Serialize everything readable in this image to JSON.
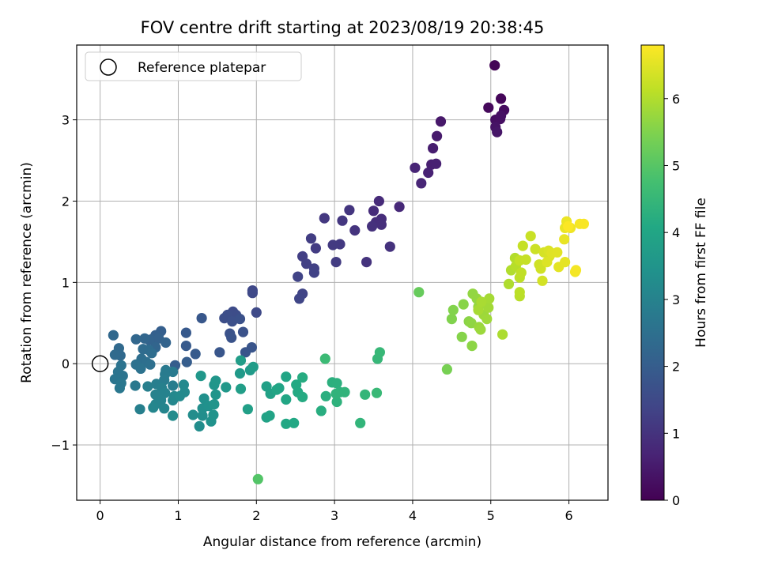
{
  "chart_data": {
    "type": "scatter",
    "title": "FOV centre drift starting at 2023/08/19 20:38:45",
    "xlabel": "Angular distance from reference (arcmin)",
    "ylabel": "Rotation from reference (arcmin)",
    "xlim": [
      -0.3,
      6.5
    ],
    "ylim": [
      -1.68,
      3.92
    ],
    "xticks": [
      0,
      1,
      2,
      3,
      4,
      5,
      6
    ],
    "xtick_labels": [
      "0",
      "1",
      "2",
      "3",
      "4",
      "5",
      "6"
    ],
    "yticks": [
      -1,
      0,
      1,
      2,
      3
    ],
    "ytick_labels": [
      "−1",
      "0",
      "1",
      "2",
      "3"
    ],
    "grid": true,
    "legend": {
      "position": "top-left",
      "label": "Reference platepar"
    },
    "reference_point": {
      "x": 0,
      "y": 0
    },
    "colorbar": {
      "label": "Hours from first FF file",
      "colormap": "viridis",
      "range": [
        0,
        6.8
      ],
      "ticks": [
        0,
        1,
        2,
        3,
        4,
        5,
        6
      ],
      "tick_labels": [
        "0",
        "1",
        "2",
        "3",
        "4",
        "5",
        "6"
      ]
    },
    "points": [
      [
        5.05,
        3.67,
        0.05
      ],
      [
        5.13,
        3.26,
        0.1
      ],
      [
        4.97,
        3.15,
        0.15
      ],
      [
        5.17,
        3.12,
        0.2
      ],
      [
        5.06,
        3.0,
        0.25
      ],
      [
        5.12,
        3.01,
        0.28
      ],
      [
        5.13,
        3.05,
        0.3
      ],
      [
        5.06,
        2.91,
        0.35
      ],
      [
        5.08,
        2.85,
        0.4
      ],
      [
        4.36,
        2.98,
        0.45
      ],
      [
        4.31,
        2.8,
        0.5
      ],
      [
        4.26,
        2.65,
        0.55
      ],
      [
        4.24,
        2.45,
        0.6
      ],
      [
        4.3,
        2.46,
        0.62
      ],
      [
        4.2,
        2.35,
        0.65
      ],
      [
        4.03,
        2.41,
        0.7
      ],
      [
        4.11,
        2.22,
        0.72
      ],
      [
        3.83,
        1.93,
        0.78
      ],
      [
        3.57,
        2.0,
        0.82
      ],
      [
        3.5,
        1.88,
        0.85
      ],
      [
        3.6,
        1.78,
        0.88
      ],
      [
        3.53,
        1.74,
        0.9
      ],
      [
        3.6,
        1.71,
        0.92
      ],
      [
        3.48,
        1.69,
        0.95
      ],
      [
        3.71,
        1.44,
        0.98
      ],
      [
        3.41,
        1.25,
        1.0
      ],
      [
        3.26,
        1.64,
        1.02
      ],
      [
        3.19,
        1.89,
        1.05
      ],
      [
        3.1,
        1.76,
        1.08
      ],
      [
        2.87,
        1.79,
        1.1
      ],
      [
        3.07,
        1.47,
        1.12
      ],
      [
        2.98,
        1.46,
        1.15
      ],
      [
        3.02,
        1.25,
        1.18
      ],
      [
        2.76,
        1.42,
        1.2
      ],
      [
        2.7,
        1.54,
        1.22
      ],
      [
        2.59,
        1.32,
        1.25
      ],
      [
        2.64,
        1.23,
        1.28
      ],
      [
        2.74,
        1.17,
        1.3
      ],
      [
        2.74,
        1.12,
        1.32
      ],
      [
        2.53,
        1.07,
        1.35
      ],
      [
        2.59,
        0.86,
        1.38
      ],
      [
        2.55,
        0.8,
        1.4
      ],
      [
        1.95,
        0.9,
        1.45
      ],
      [
        1.95,
        0.87,
        1.48
      ],
      [
        2.0,
        0.63,
        1.5
      ],
      [
        1.7,
        0.64,
        1.55
      ],
      [
        1.74,
        0.6,
        1.58
      ],
      [
        1.63,
        0.6,
        1.6
      ],
      [
        1.59,
        0.56,
        1.62
      ],
      [
        1.69,
        0.52,
        1.65
      ],
      [
        1.79,
        0.55,
        1.68
      ],
      [
        1.83,
        0.39,
        1.7
      ],
      [
        1.66,
        0.37,
        1.72
      ],
      [
        1.68,
        0.32,
        1.75
      ],
      [
        1.94,
        0.2,
        1.78
      ],
      [
        1.86,
        0.14,
        1.8
      ],
      [
        1.53,
        0.14,
        1.82
      ],
      [
        1.3,
        0.56,
        1.85
      ],
      [
        1.1,
        0.38,
        1.9
      ],
      [
        1.1,
        0.22,
        1.92
      ],
      [
        1.22,
        0.12,
        1.95
      ],
      [
        1.11,
        0.02,
        1.98
      ],
      [
        0.96,
        -0.02,
        2.0
      ],
      [
        0.78,
        0.4,
        2.05
      ],
      [
        0.71,
        0.35,
        2.08
      ],
      [
        0.66,
        0.3,
        2.1
      ],
      [
        0.75,
        0.31,
        2.12
      ],
      [
        0.63,
        0.29,
        2.15
      ],
      [
        0.84,
        0.26,
        2.18
      ],
      [
        0.71,
        0.2,
        2.2
      ],
      [
        0.57,
        0.31,
        2.22
      ],
      [
        0.46,
        0.3,
        2.25
      ],
      [
        0.17,
        0.35,
        2.28
      ],
      [
        0.24,
        0.19,
        2.3
      ],
      [
        0.26,
        0.1,
        2.32
      ],
      [
        0.19,
        0.11,
        2.35
      ],
      [
        0.55,
        0.18,
        2.38
      ],
      [
        0.62,
        0.17,
        2.4
      ],
      [
        0.66,
        0.13,
        2.42
      ],
      [
        0.53,
        0.06,
        2.45
      ],
      [
        0.59,
        0.02,
        2.48
      ],
      [
        0.64,
        -0.01,
        2.5
      ],
      [
        0.46,
        -0.01,
        2.52
      ],
      [
        0.52,
        -0.06,
        2.55
      ],
      [
        0.27,
        -0.02,
        2.58
      ],
      [
        0.23,
        -0.1,
        2.6
      ],
      [
        0.29,
        -0.15,
        2.62
      ],
      [
        0.19,
        -0.19,
        2.65
      ],
      [
        0.27,
        -0.24,
        2.68
      ],
      [
        0.25,
        -0.3,
        2.7
      ],
      [
        0.45,
        -0.27,
        2.72
      ],
      [
        0.84,
        -0.08,
        2.75
      ],
      [
        0.93,
        -0.1,
        2.78
      ],
      [
        0.83,
        -0.13,
        2.8
      ],
      [
        0.82,
        -0.2,
        2.82
      ],
      [
        0.93,
        -0.27,
        2.85
      ],
      [
        0.72,
        -0.25,
        2.88
      ],
      [
        0.61,
        -0.28,
        2.9
      ],
      [
        0.51,
        -0.56,
        2.92
      ],
      [
        0.79,
        -0.3,
        2.95
      ],
      [
        0.71,
        -0.38,
        2.98
      ],
      [
        0.83,
        -0.36,
        3.0
      ],
      [
        0.78,
        -0.45,
        3.02
      ],
      [
        0.71,
        -0.5,
        3.05
      ],
      [
        0.82,
        -0.55,
        3.08
      ],
      [
        0.68,
        -0.54,
        3.1
      ],
      [
        0.93,
        -0.45,
        3.12
      ],
      [
        0.95,
        -0.4,
        3.15
      ],
      [
        1.07,
        -0.26,
        3.18
      ],
      [
        1.08,
        -0.35,
        3.2
      ],
      [
        1.02,
        -0.4,
        3.22
      ],
      [
        0.93,
        -0.64,
        3.25
      ],
      [
        1.19,
        -0.63,
        3.28
      ],
      [
        1.27,
        -0.77,
        3.3
      ],
      [
        1.31,
        -0.64,
        3.32
      ],
      [
        1.31,
        -0.55,
        3.35
      ],
      [
        1.33,
        -0.43,
        3.38
      ],
      [
        1.39,
        -0.52,
        3.4
      ],
      [
        1.42,
        -0.71,
        3.42
      ],
      [
        1.45,
        -0.63,
        3.45
      ],
      [
        1.46,
        -0.5,
        3.48
      ],
      [
        1.48,
        -0.38,
        3.5
      ],
      [
        1.46,
        -0.26,
        3.52
      ],
      [
        1.48,
        -0.21,
        3.55
      ],
      [
        1.29,
        -0.15,
        3.58
      ],
      [
        1.61,
        -0.29,
        3.6
      ],
      [
        1.79,
        -0.12,
        3.65
      ],
      [
        1.92,
        -0.08,
        3.68
      ],
      [
        1.96,
        -0.04,
        3.72
      ],
      [
        1.8,
        0.04,
        3.75
      ],
      [
        1.8,
        -0.31,
        3.78
      ],
      [
        1.89,
        -0.56,
        3.82
      ],
      [
        2.13,
        -0.28,
        3.85
      ],
      [
        2.18,
        -0.37,
        3.88
      ],
      [
        2.13,
        -0.66,
        3.9
      ],
      [
        2.17,
        -0.64,
        3.92
      ],
      [
        2.29,
        -0.3,
        3.95
      ],
      [
        2.26,
        -0.32,
        3.98
      ],
      [
        2.38,
        -0.16,
        4.0
      ],
      [
        2.38,
        -0.44,
        4.02
      ],
      [
        2.38,
        -0.74,
        4.05
      ],
      [
        2.48,
        -0.73,
        4.08
      ],
      [
        2.51,
        -0.26,
        4.1
      ],
      [
        2.53,
        -0.35,
        4.12
      ],
      [
        2.59,
        -0.41,
        4.15
      ],
      [
        2.59,
        -0.17,
        4.18
      ],
      [
        2.83,
        -0.58,
        4.22
      ],
      [
        2.89,
        -0.4,
        4.25
      ],
      [
        2.97,
        -0.23,
        4.28
      ],
      [
        3.03,
        -0.24,
        4.3
      ],
      [
        3.07,
        -0.35,
        4.32
      ],
      [
        3.03,
        -0.47,
        4.35
      ],
      [
        3.02,
        -0.37,
        4.38
      ],
      [
        3.13,
        -0.35,
        4.4
      ],
      [
        3.33,
        -0.73,
        4.42
      ],
      [
        3.39,
        -0.38,
        4.45
      ],
      [
        3.55,
        0.06,
        4.5
      ],
      [
        3.58,
        0.14,
        4.52
      ],
      [
        3.54,
        -0.36,
        4.55
      ],
      [
        2.88,
        0.06,
        4.6
      ],
      [
        2.02,
        -1.42,
        4.95
      ],
      [
        4.08,
        0.88,
        5.2
      ],
      [
        4.44,
        -0.07,
        5.4
      ],
      [
        4.5,
        0.55,
        5.5
      ],
      [
        4.52,
        0.66,
        5.52
      ],
      [
        4.63,
        0.33,
        5.55
      ],
      [
        4.65,
        0.73,
        5.58
      ],
      [
        4.72,
        0.52,
        5.6
      ],
      [
        4.76,
        0.22,
        5.62
      ],
      [
        4.75,
        0.5,
        5.65
      ],
      [
        4.77,
        0.86,
        5.68
      ],
      [
        4.82,
        0.8,
        5.7
      ],
      [
        4.84,
        0.7,
        5.72
      ],
      [
        4.85,
        0.45,
        5.75
      ],
      [
        4.87,
        0.42,
        5.78
      ],
      [
        4.91,
        0.6,
        5.8
      ],
      [
        4.95,
        0.55,
        5.82
      ],
      [
        4.97,
        0.69,
        5.85
      ],
      [
        4.98,
        0.8,
        5.88
      ],
      [
        4.84,
        0.66,
        5.9
      ],
      [
        4.88,
        0.76,
        5.92
      ],
      [
        5.15,
        0.36,
        5.95
      ],
      [
        5.23,
        0.98,
        5.98
      ],
      [
        5.26,
        1.15,
        6.0
      ],
      [
        5.31,
        1.3,
        6.02
      ],
      [
        5.32,
        1.2,
        6.05
      ],
      [
        5.37,
        0.83,
        6.08
      ],
      [
        5.37,
        0.88,
        6.1
      ],
      [
        5.37,
        1.06,
        6.12
      ],
      [
        5.39,
        1.12,
        6.15
      ],
      [
        5.37,
        1.27,
        6.18
      ],
      [
        5.41,
        1.45,
        6.2
      ],
      [
        5.45,
        1.28,
        6.22
      ],
      [
        5.51,
        1.57,
        6.25
      ],
      [
        5.57,
        1.41,
        6.28
      ],
      [
        5.62,
        1.22,
        6.3
      ],
      [
        5.64,
        1.17,
        6.32
      ],
      [
        5.66,
        1.02,
        6.35
      ],
      [
        5.68,
        1.37,
        6.38
      ],
      [
        5.75,
        1.32,
        6.4
      ],
      [
        5.74,
        1.39,
        6.42
      ],
      [
        5.72,
        1.25,
        6.45
      ],
      [
        5.78,
        1.36,
        6.48
      ],
      [
        5.85,
        1.37,
        6.5
      ],
      [
        5.87,
        1.19,
        6.52
      ],
      [
        5.95,
        1.25,
        6.55
      ],
      [
        5.94,
        1.53,
        6.58
      ],
      [
        5.95,
        1.67,
        6.6
      ],
      [
        5.97,
        1.75,
        6.62
      ],
      [
        6.02,
        1.67,
        6.65
      ],
      [
        6.08,
        1.13,
        6.68
      ],
      [
        6.09,
        1.15,
        6.7
      ],
      [
        6.14,
        1.72,
        6.72
      ],
      [
        6.19,
        1.72,
        6.75
      ],
      [
        5.99,
        1.69,
        6.78
      ]
    ]
  }
}
